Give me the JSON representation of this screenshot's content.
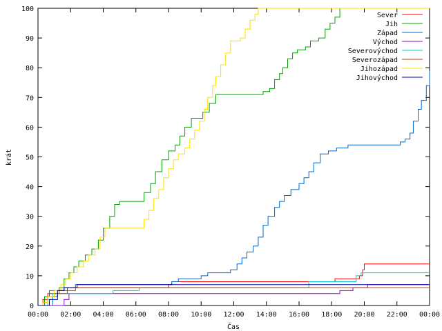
{
  "chart_data": {
    "type": "line",
    "title": "",
    "xlabel": "Čas",
    "ylabel": "krát",
    "xlim": [
      0,
      24
    ],
    "ylim": [
      0,
      100
    ],
    "grid": false,
    "legend_position": "top-right",
    "x_ticks": [
      {
        "value": 0,
        "label": "00:00"
      },
      {
        "value": 2,
        "label": "02:00"
      },
      {
        "value": 4,
        "label": "04:00"
      },
      {
        "value": 6,
        "label": "06:00"
      },
      {
        "value": 8,
        "label": "08:00"
      },
      {
        "value": 10,
        "label": "10:00"
      },
      {
        "value": 12,
        "label": "12:00"
      },
      {
        "value": 14,
        "label": "14:00"
      },
      {
        "value": 16,
        "label": "16:00"
      },
      {
        "value": 18,
        "label": "18:00"
      },
      {
        "value": 20,
        "label": "20:00"
      },
      {
        "value": 22,
        "label": "22:00"
      },
      {
        "value": 24,
        "label": "00:00"
      }
    ],
    "y_ticks": [
      0,
      10,
      20,
      30,
      40,
      50,
      60,
      70,
      80,
      90,
      100
    ],
    "series": [
      {
        "name": "Sever",
        "color": "#ff0000",
        "points": [
          [
            0,
            0
          ],
          [
            0.3,
            2
          ],
          [
            0.6,
            4
          ],
          [
            1.3,
            5
          ],
          [
            1.8,
            6
          ],
          [
            3.5,
            6
          ],
          [
            4.6,
            6
          ],
          [
            8,
            7
          ],
          [
            8.2,
            8
          ],
          [
            12,
            8
          ],
          [
            16.5,
            8
          ],
          [
            18.2,
            9
          ],
          [
            19.7,
            10
          ],
          [
            19.9,
            12
          ],
          [
            20.0,
            14
          ],
          [
            24,
            14
          ]
        ]
      },
      {
        "name": "Jih",
        "color": "#00a000",
        "points": [
          [
            0,
            0
          ],
          [
            0.4,
            3
          ],
          [
            0.7,
            5
          ],
          [
            1.0,
            5
          ],
          [
            1.3,
            6
          ],
          [
            1.6,
            9
          ],
          [
            1.9,
            11
          ],
          [
            2.2,
            13
          ],
          [
            2.5,
            15
          ],
          [
            2.9,
            17
          ],
          [
            3.3,
            19
          ],
          [
            3.7,
            22
          ],
          [
            4.0,
            26
          ],
          [
            4.4,
            30
          ],
          [
            4.7,
            34
          ],
          [
            5.0,
            35
          ],
          [
            6.2,
            35
          ],
          [
            6.5,
            38
          ],
          [
            6.9,
            41
          ],
          [
            7.2,
            45
          ],
          [
            7.6,
            49
          ],
          [
            8.0,
            52
          ],
          [
            8.4,
            54
          ],
          [
            8.7,
            57
          ],
          [
            9.0,
            60
          ],
          [
            9.4,
            63
          ],
          [
            9.8,
            63
          ],
          [
            10.1,
            65
          ],
          [
            10.5,
            68
          ],
          [
            10.9,
            71
          ],
          [
            12.0,
            71
          ],
          [
            13.5,
            71
          ],
          [
            13.8,
            72
          ],
          [
            14.2,
            73
          ],
          [
            14.5,
            76
          ],
          [
            14.8,
            78
          ],
          [
            15.0,
            80
          ],
          [
            15.3,
            83
          ],
          [
            15.6,
            85
          ],
          [
            15.9,
            86
          ],
          [
            16.4,
            87
          ],
          [
            16.7,
            89
          ],
          [
            17.2,
            90
          ],
          [
            17.6,
            93
          ],
          [
            17.9,
            95
          ],
          [
            18.2,
            97
          ],
          [
            18.5,
            100
          ],
          [
            24,
            100
          ]
        ]
      },
      {
        "name": "Západ",
        "color": "#0066cc",
        "points": [
          [
            0,
            0
          ],
          [
            0.5,
            0
          ],
          [
            0.9,
            3
          ],
          [
            1.2,
            5
          ],
          [
            1.6,
            6
          ],
          [
            2.3,
            7
          ],
          [
            4.0,
            7
          ],
          [
            6.2,
            7
          ],
          [
            8.2,
            8
          ],
          [
            8.6,
            9
          ],
          [
            9.4,
            9
          ],
          [
            10.0,
            10
          ],
          [
            10.4,
            11
          ],
          [
            11.5,
            11
          ],
          [
            11.8,
            12
          ],
          [
            12.2,
            14
          ],
          [
            12.5,
            16
          ],
          [
            12.8,
            18
          ],
          [
            13.2,
            20
          ],
          [
            13.5,
            23
          ],
          [
            13.8,
            27
          ],
          [
            14.1,
            30
          ],
          [
            14.5,
            33
          ],
          [
            14.8,
            35
          ],
          [
            15.1,
            37
          ],
          [
            15.5,
            39
          ],
          [
            16.0,
            41
          ],
          [
            16.3,
            43
          ],
          [
            16.6,
            45
          ],
          [
            16.9,
            48
          ],
          [
            17.3,
            51
          ],
          [
            17.8,
            52
          ],
          [
            18.3,
            53
          ],
          [
            19.0,
            54
          ],
          [
            20.5,
            54
          ],
          [
            22.0,
            54
          ],
          [
            22.2,
            55
          ],
          [
            22.5,
            56
          ],
          [
            22.8,
            58
          ],
          [
            23.0,
            62
          ],
          [
            23.3,
            66
          ],
          [
            23.5,
            69
          ],
          [
            23.8,
            74
          ],
          [
            24,
            79
          ]
        ]
      },
      {
        "name": "Východ",
        "color": "#9900cc",
        "points": [
          [
            0,
            0
          ],
          [
            1.6,
            2
          ],
          [
            1.9,
            4
          ],
          [
            3.0,
            4
          ],
          [
            6.0,
            4
          ],
          [
            12.0,
            4
          ],
          [
            18.0,
            4
          ],
          [
            18.5,
            5
          ],
          [
            19.3,
            6
          ],
          [
            20.2,
            7
          ],
          [
            24,
            7
          ]
        ]
      },
      {
        "name": "Severovýchod",
        "color": "#00c8c8",
        "points": [
          [
            0,
            0
          ],
          [
            0.6,
            2
          ],
          [
            0.9,
            4
          ],
          [
            1.5,
            4
          ],
          [
            3.0,
            4
          ],
          [
            4.6,
            5
          ],
          [
            6.2,
            6
          ],
          [
            10.0,
            6
          ],
          [
            13.0,
            6
          ],
          [
            16.5,
            6
          ],
          [
            16.6,
            8
          ],
          [
            18.0,
            8
          ],
          [
            19.5,
            10
          ],
          [
            19.8,
            11
          ],
          [
            24,
            11
          ]
        ]
      },
      {
        "name": "Severozápad",
        "color": "#c04000",
        "points": [
          [
            0,
            0
          ],
          [
            0.3,
            1
          ],
          [
            0.6,
            3
          ],
          [
            1.0,
            4
          ],
          [
            1.8,
            5
          ],
          [
            2.3,
            6
          ],
          [
            3.6,
            6
          ],
          [
            5.0,
            6
          ],
          [
            8.0,
            6
          ],
          [
            12.0,
            6
          ],
          [
            16.5,
            6
          ],
          [
            18.0,
            6
          ],
          [
            20.0,
            6
          ],
          [
            24,
            6
          ]
        ]
      },
      {
        "name": "Jihozápad",
        "color": "#ffdd00",
        "points": [
          [
            0,
            0
          ],
          [
            0.3,
            1
          ],
          [
            0.6,
            3
          ],
          [
            1.0,
            5
          ],
          [
            1.4,
            7
          ],
          [
            1.7,
            9
          ],
          [
            2.0,
            11
          ],
          [
            2.4,
            13
          ],
          [
            2.8,
            15
          ],
          [
            3.1,
            17
          ],
          [
            3.5,
            19
          ],
          [
            3.8,
            23
          ],
          [
            4.1,
            26
          ],
          [
            5.0,
            26
          ],
          [
            6.2,
            26
          ],
          [
            6.5,
            29
          ],
          [
            6.8,
            32
          ],
          [
            7.1,
            36
          ],
          [
            7.4,
            39
          ],
          [
            7.7,
            43
          ],
          [
            8.0,
            46
          ],
          [
            8.3,
            49
          ],
          [
            8.6,
            51
          ],
          [
            9.0,
            53
          ],
          [
            9.3,
            56
          ],
          [
            9.6,
            59
          ],
          [
            9.9,
            62
          ],
          [
            10.2,
            66
          ],
          [
            10.4,
            70
          ],
          [
            10.7,
            74
          ],
          [
            10.9,
            77
          ],
          [
            11.2,
            81
          ],
          [
            11.5,
            85
          ],
          [
            11.8,
            89
          ],
          [
            12.4,
            90
          ],
          [
            12.7,
            93
          ],
          [
            13.0,
            96
          ],
          [
            13.3,
            98
          ],
          [
            13.5,
            100
          ],
          [
            24,
            100
          ]
        ]
      },
      {
        "name": "Jihovýchod",
        "color": "#0000a0",
        "points": [
          [
            0,
            0
          ],
          [
            0.7,
            2
          ],
          [
            1.2,
            5
          ],
          [
            1.6,
            6
          ],
          [
            2.4,
            7
          ],
          [
            5.0,
            7
          ],
          [
            8.0,
            7
          ],
          [
            12.0,
            7
          ],
          [
            18.0,
            7
          ],
          [
            20.0,
            7
          ],
          [
            24,
            7
          ]
        ]
      }
    ]
  }
}
